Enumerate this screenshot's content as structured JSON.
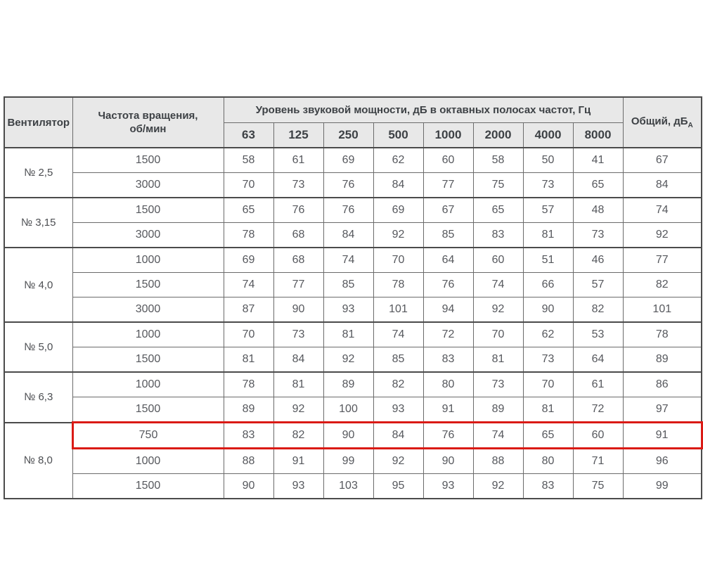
{
  "table": {
    "col_headers": {
      "fan": "Вентилятор",
      "rpm": "Частота вращения,\nоб/мин",
      "octave_group": "Уровень звуковой мощности, дБ в октавных полосах частот, Гц",
      "frequencies": [
        "63",
        "125",
        "250",
        "500",
        "1000",
        "2000",
        "4000",
        "8000"
      ],
      "total": "Общий, дБ",
      "total_sub": "А"
    },
    "groups": [
      {
        "fan": "№ 2,5",
        "rows": [
          {
            "rpm": "1500",
            "values": [
              58,
              61,
              69,
              62,
              60,
              58,
              50,
              41
            ],
            "total": 67
          },
          {
            "rpm": "3000",
            "values": [
              70,
              73,
              76,
              84,
              77,
              75,
              73,
              65
            ],
            "total": 84
          }
        ]
      },
      {
        "fan": "№ 3,15",
        "rows": [
          {
            "rpm": "1500",
            "values": [
              65,
              76,
              76,
              69,
              67,
              65,
              57,
              48
            ],
            "total": 74
          },
          {
            "rpm": "3000",
            "values": [
              78,
              68,
              84,
              92,
              85,
              83,
              81,
              73
            ],
            "total": 92
          }
        ]
      },
      {
        "fan": "№ 4,0",
        "rows": [
          {
            "rpm": "1000",
            "values": [
              69,
              68,
              74,
              70,
              64,
              60,
              51,
              46
            ],
            "total": 77
          },
          {
            "rpm": "1500",
            "values": [
              74,
              77,
              85,
              78,
              76,
              74,
              66,
              57
            ],
            "total": 82
          },
          {
            "rpm": "3000",
            "values": [
              87,
              90,
              93,
              101,
              94,
              92,
              90,
              82
            ],
            "total": 101
          }
        ]
      },
      {
        "fan": "№ 5,0",
        "rows": [
          {
            "rpm": "1000",
            "values": [
              70,
              73,
              81,
              74,
              72,
              70,
              62,
              53
            ],
            "total": 78
          },
          {
            "rpm": "1500",
            "values": [
              81,
              84,
              92,
              85,
              83,
              81,
              73,
              64
            ],
            "total": 89
          }
        ]
      },
      {
        "fan": "№ 6,3",
        "rows": [
          {
            "rpm": "1000",
            "values": [
              78,
              81,
              89,
              82,
              80,
              73,
              70,
              61
            ],
            "total": 86
          },
          {
            "rpm": "1500",
            "values": [
              89,
              92,
              100,
              93,
              91,
              89,
              81,
              72
            ],
            "total": 97
          }
        ]
      },
      {
        "fan": "№ 8,0",
        "rows": [
          {
            "rpm": "750",
            "values": [
              83,
              82,
              90,
              84,
              76,
              74,
              65,
              60
            ],
            "total": 91,
            "highlighted": true
          },
          {
            "rpm": "1000",
            "values": [
              88,
              91,
              99,
              92,
              90,
              88,
              80,
              71
            ],
            "total": 96
          },
          {
            "rpm": "1500",
            "values": [
              90,
              93,
              103,
              95,
              93,
              92,
              83,
              75
            ],
            "total": 99
          }
        ]
      }
    ],
    "colors": {
      "highlight": "#da1a15",
      "header_bg": "#e8e8e8",
      "border_strong": "#4b4b4b",
      "border_light": "#6b6b6b",
      "text": "#56585d"
    }
  },
  "chart_data": {
    "type": "table",
    "title": "Уровень звуковой мощности, дБ в октавных полосах частот, Гц",
    "columns": [
      "Вентилятор",
      "Частота вращения, об/мин",
      "63",
      "125",
      "250",
      "500",
      "1000",
      "2000",
      "4000",
      "8000",
      "Общий, дБА"
    ],
    "rows": [
      [
        "№ 2,5",
        "1500",
        58,
        61,
        69,
        62,
        60,
        58,
        50,
        41,
        67
      ],
      [
        "№ 2,5",
        "3000",
        70,
        73,
        76,
        84,
        77,
        75,
        73,
        65,
        84
      ],
      [
        "№ 3,15",
        "1500",
        65,
        76,
        76,
        69,
        67,
        65,
        57,
        48,
        74
      ],
      [
        "№ 3,15",
        "3000",
        78,
        68,
        84,
        92,
        85,
        83,
        81,
        73,
        92
      ],
      [
        "№ 4,0",
        "1000",
        69,
        68,
        74,
        70,
        64,
        60,
        51,
        46,
        77
      ],
      [
        "№ 4,0",
        "1500",
        74,
        77,
        85,
        78,
        76,
        74,
        66,
        57,
        82
      ],
      [
        "№ 4,0",
        "3000",
        87,
        90,
        93,
        101,
        94,
        92,
        90,
        82,
        101
      ],
      [
        "№ 5,0",
        "1000",
        70,
        73,
        81,
        74,
        72,
        70,
        62,
        53,
        78
      ],
      [
        "№ 5,0",
        "1500",
        81,
        84,
        92,
        85,
        83,
        81,
        73,
        64,
        89
      ],
      [
        "№ 6,3",
        "1000",
        78,
        81,
        89,
        82,
        80,
        73,
        70,
        61,
        86
      ],
      [
        "№ 6,3",
        "1500",
        89,
        92,
        100,
        93,
        91,
        89,
        81,
        72,
        97
      ],
      [
        "№ 8,0",
        "750",
        83,
        82,
        90,
        84,
        76,
        74,
        65,
        60,
        91
      ],
      [
        "№ 8,0",
        "1000",
        88,
        91,
        99,
        92,
        90,
        88,
        80,
        71,
        96
      ],
      [
        "№ 8,0",
        "1500",
        90,
        93,
        103,
        95,
        93,
        92,
        83,
        75,
        99
      ]
    ],
    "highlighted_row_index": 11
  }
}
